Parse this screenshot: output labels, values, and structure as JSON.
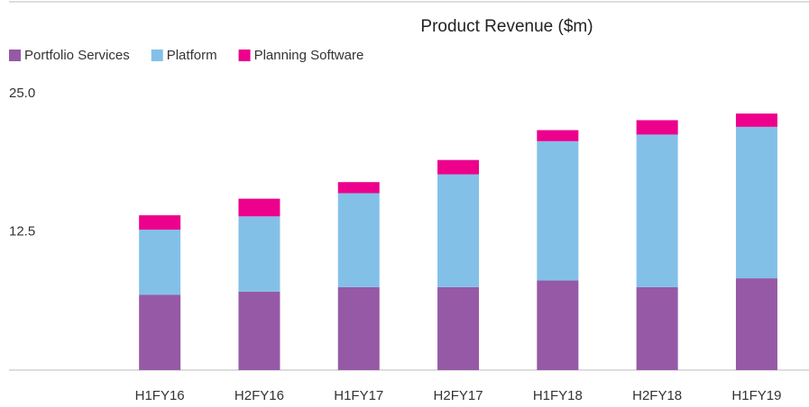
{
  "chart_data": {
    "type": "stacked_bar",
    "title": "Product Revenue ($m)",
    "categories": [
      "H1FY16",
      "H2FY16",
      "H1FY17",
      "H2FY17",
      "H1FY18",
      "H2FY18",
      "H1FY19"
    ],
    "series": [
      {
        "name": "Portfolio Services",
        "color": "#9659a6",
        "values": [
          6.8,
          7.1,
          7.5,
          7.5,
          8.1,
          7.5,
          8.3
        ]
      },
      {
        "name": "Platform",
        "color": "#83c0e8",
        "values": [
          5.9,
          6.8,
          8.5,
          10.2,
          12.6,
          13.8,
          13.7
        ]
      },
      {
        "name": "Planning Software",
        "color": "#ec008c",
        "values": [
          1.3,
          1.6,
          1.0,
          1.3,
          1.0,
          1.3,
          1.2
        ]
      }
    ],
    "ylim": [
      0,
      25
    ],
    "yticks": [
      12.5,
      {
        "value": 25,
        "label": "25.0"
      }
    ],
    "legend": "top-left"
  }
}
